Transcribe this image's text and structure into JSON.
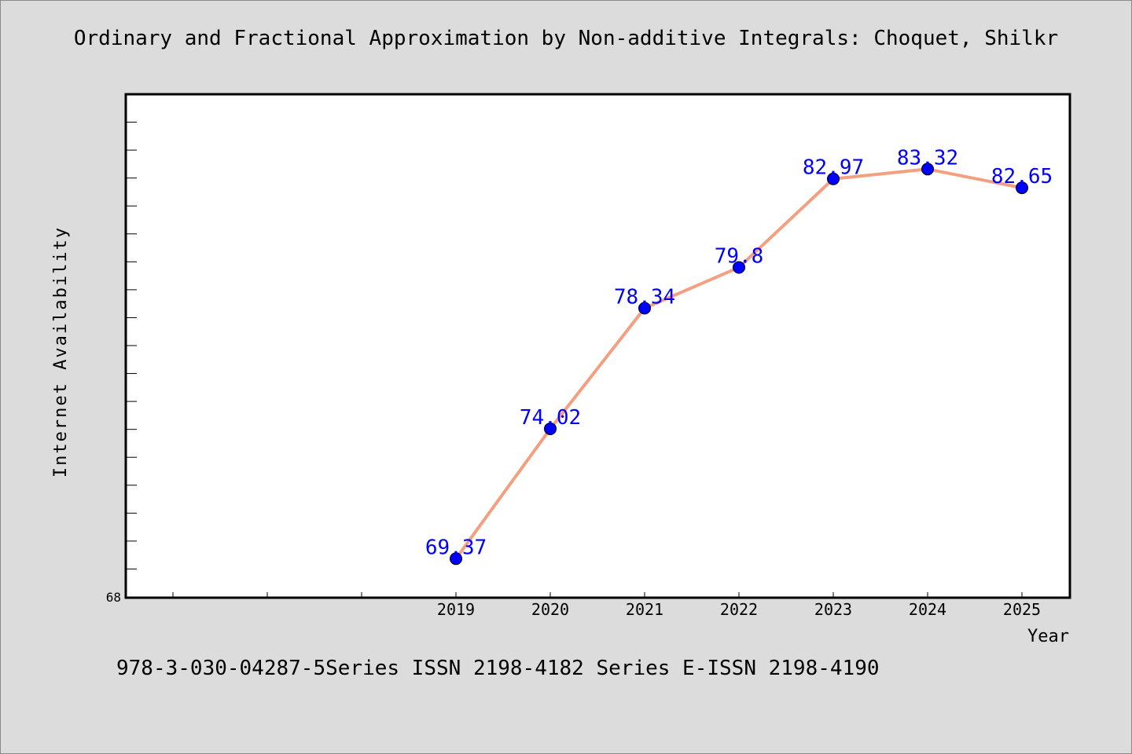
{
  "title": "Ordinary and Fractional Approximation by Non-additive Integrals: Choquet, Shilkr",
  "footer": "978-3-030-04287-5Series ISSN 2198-4182 Series E-ISSN 2198-4190",
  "colors": {
    "background": "#dcdcdc",
    "plot_area": "#ffffff",
    "line": "#f4a080",
    "marker": "#0000ff",
    "data_label": "#0000ff"
  },
  "chart_data": {
    "type": "line",
    "xlabel": "Year",
    "ylabel": "Internet Availability",
    "categories": [
      "2019",
      "2020",
      "2021",
      "2022",
      "2023",
      "2024",
      "2025"
    ],
    "x_tick_labels": [
      "",
      "",
      "",
      "2019",
      "2020",
      "2021",
      "2022",
      "2023",
      "2024",
      "2025"
    ],
    "values": [
      69.37,
      74.02,
      78.34,
      79.8,
      82.97,
      83.32,
      82.65
    ],
    "data_labels": [
      "69.37",
      "74.02",
      "78.34",
      "79.8",
      "82.97",
      "83.32",
      "82.65"
    ],
    "ylim": [
      68,
      86
    ],
    "y_tick_labels": [
      "68"
    ],
    "y_minor_step": 1,
    "grid": false,
    "legend": "none",
    "markers": "circle"
  }
}
